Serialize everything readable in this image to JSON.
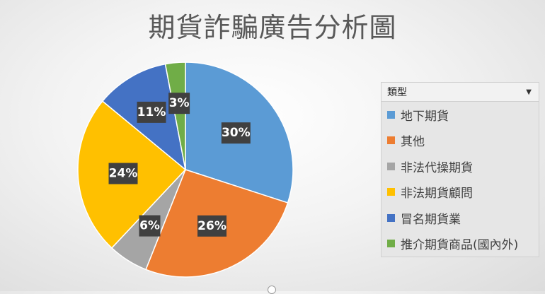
{
  "chart_data": {
    "type": "pie",
    "title": "期貨詐騙廣告分析圖",
    "slices": [
      {
        "label": "地下期貨",
        "value": 30,
        "display": "30%",
        "color": "#5B9BD5"
      },
      {
        "label": "其他",
        "value": 26,
        "display": "26%",
        "color": "#ED7D31"
      },
      {
        "label": "非法代操期貨",
        "value": 6,
        "display": "6%",
        "color": "#A5A5A5"
      },
      {
        "label": "非法期貨顧問",
        "value": 24,
        "display": "24%",
        "color": "#FFC000"
      },
      {
        "label": "冒名期貨業",
        "value": 11,
        "display": "11%",
        "color": "#4472C4"
      },
      {
        "label": "推介期貨商品(國內外)",
        "value": 3,
        "display": "3%",
        "color": "#70AD47"
      }
    ],
    "legend_placement": "right",
    "legend_title": "類型"
  }
}
